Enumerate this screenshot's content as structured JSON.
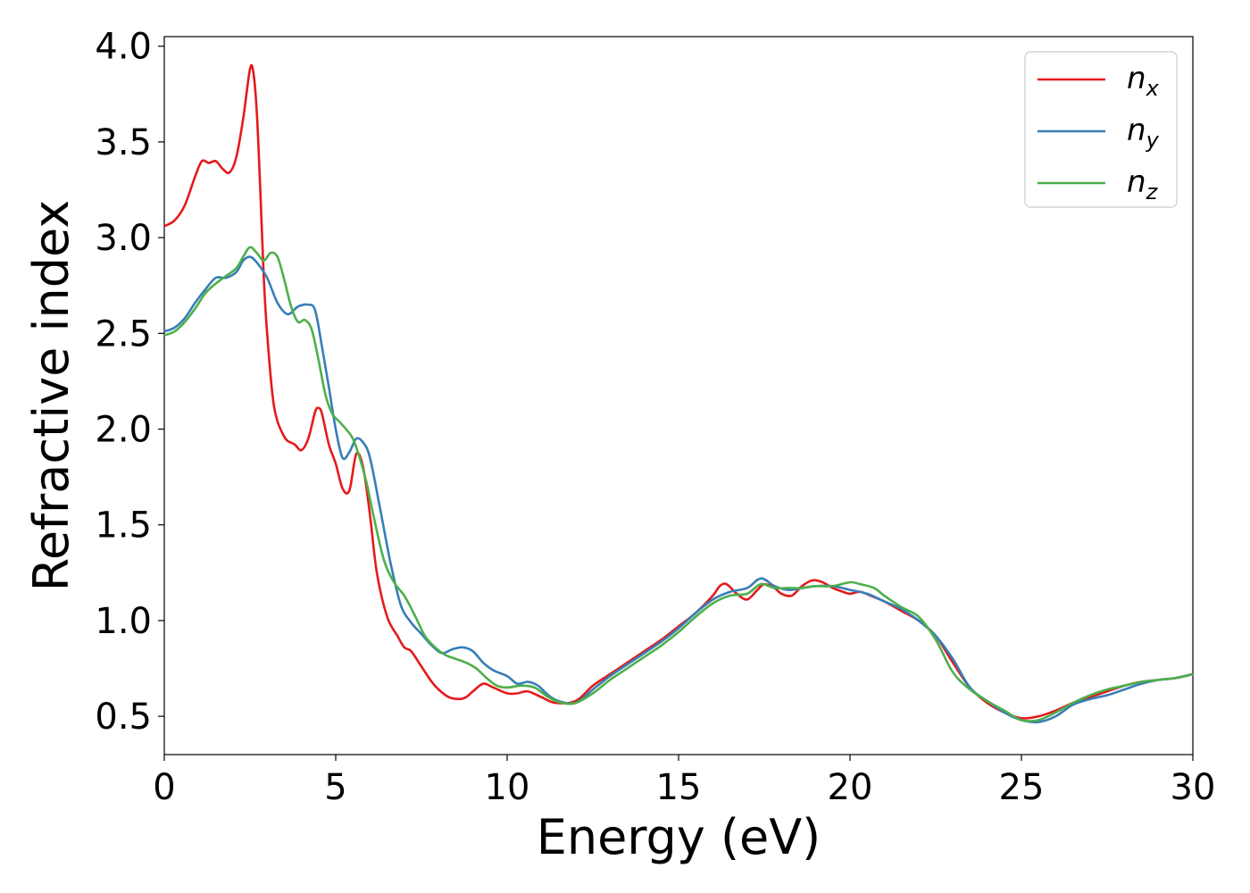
{
  "chart_data": {
    "type": "line",
    "xlabel": "Energy (eV)",
    "ylabel": "Refractive index",
    "xlim": [
      0,
      30
    ],
    "ylim": [
      0.3,
      4.05
    ],
    "x_ticks": [
      0,
      5,
      10,
      15,
      20,
      25,
      30
    ],
    "x_tick_labels": [
      "0",
      "5",
      "10",
      "15",
      "20",
      "25",
      "30"
    ],
    "y_ticks": [
      0.5,
      1.0,
      1.5,
      2.0,
      2.5,
      3.0,
      3.5,
      4.0
    ],
    "y_tick_labels": [
      "0.5",
      "1.0",
      "1.5",
      "2.0",
      "2.5",
      "3.0",
      "3.5",
      "4.0"
    ],
    "grid": false,
    "legend_position": "top-right",
    "series": [
      {
        "name": "n",
        "subscript": "x",
        "color": "#e41a1c",
        "x": [
          0,
          0.3,
          0.6,
          0.9,
          1.1,
          1.3,
          1.5,
          1.7,
          1.9,
          2.1,
          2.3,
          2.5,
          2.6,
          2.7,
          2.8,
          2.9,
          3.0,
          3.2,
          3.5,
          3.8,
          4.0,
          4.2,
          4.4,
          4.5,
          4.6,
          4.8,
          5.0,
          5.2,
          5.4,
          5.6,
          5.8,
          6.0,
          6.2,
          6.5,
          6.8,
          7.0,
          7.2,
          7.5,
          7.8,
          8.0,
          8.3,
          8.6,
          8.8,
          9.0,
          9.3,
          9.6,
          10.0,
          10.3,
          10.6,
          11.0,
          11.4,
          12.0,
          12.5,
          13.0,
          13.5,
          14.0,
          14.5,
          15.0,
          15.5,
          16.0,
          16.2,
          16.4,
          16.7,
          17.0,
          17.3,
          17.5,
          17.8,
          18.0,
          18.3,
          18.6,
          18.9,
          19.2,
          19.5,
          19.8,
          20.0,
          20.3,
          20.6,
          21.0,
          21.5,
          22.0,
          22.5,
          23.0,
          23.5,
          24.0,
          24.5,
          25.0,
          25.5,
          26.0,
          26.5,
          27.0,
          27.5,
          28.0,
          28.5,
          29.0,
          29.5,
          30.0
        ],
        "y": [
          3.06,
          3.09,
          3.17,
          3.32,
          3.4,
          3.39,
          3.4,
          3.36,
          3.34,
          3.42,
          3.62,
          3.88,
          3.86,
          3.65,
          3.25,
          2.8,
          2.5,
          2.12,
          1.96,
          1.92,
          1.89,
          1.95,
          2.09,
          2.11,
          2.08,
          1.92,
          1.82,
          1.69,
          1.68,
          1.87,
          1.8,
          1.55,
          1.25,
          1.02,
          0.92,
          0.86,
          0.84,
          0.76,
          0.68,
          0.64,
          0.6,
          0.59,
          0.6,
          0.63,
          0.67,
          0.65,
          0.62,
          0.62,
          0.63,
          0.6,
          0.57,
          0.58,
          0.66,
          0.72,
          0.78,
          0.84,
          0.9,
          0.97,
          1.04,
          1.13,
          1.18,
          1.19,
          1.14,
          1.11,
          1.16,
          1.19,
          1.17,
          1.14,
          1.13,
          1.18,
          1.21,
          1.2,
          1.17,
          1.15,
          1.14,
          1.15,
          1.13,
          1.1,
          1.05,
          1.0,
          0.92,
          0.78,
          0.65,
          0.57,
          0.52,
          0.49,
          0.5,
          0.53,
          0.57,
          0.6,
          0.63,
          0.66,
          0.68,
          0.69,
          0.7,
          0.72
        ]
      },
      {
        "name": "n",
        "subscript": "y",
        "color": "#377eb8",
        "x": [
          0,
          0.3,
          0.6,
          0.9,
          1.2,
          1.5,
          1.8,
          2.1,
          2.3,
          2.5,
          2.7,
          3.0,
          3.3,
          3.6,
          3.9,
          4.2,
          4.4,
          4.6,
          4.8,
          5.0,
          5.2,
          5.4,
          5.6,
          5.8,
          6.0,
          6.3,
          6.6,
          6.9,
          7.2,
          7.5,
          7.8,
          8.1,
          8.4,
          8.7,
          9.0,
          9.3,
          9.6,
          10.0,
          10.3,
          10.6,
          10.9,
          11.2,
          11.5,
          12.0,
          12.5,
          13.0,
          13.5,
          14.0,
          14.5,
          15.0,
          15.5,
          16.0,
          16.5,
          17.0,
          17.4,
          17.8,
          18.2,
          18.6,
          19.0,
          19.5,
          20.0,
          20.5,
          21.0,
          21.5,
          22.0,
          22.5,
          23.0,
          23.5,
          24.0,
          24.5,
          25.0,
          25.5,
          26.0,
          26.5,
          27.0,
          27.5,
          28.0,
          28.5,
          29.0,
          29.5,
          30.0
        ],
        "y": [
          2.51,
          2.53,
          2.58,
          2.66,
          2.73,
          2.79,
          2.79,
          2.82,
          2.88,
          2.9,
          2.87,
          2.79,
          2.66,
          2.6,
          2.64,
          2.65,
          2.62,
          2.43,
          2.22,
          2.0,
          1.85,
          1.88,
          1.95,
          1.93,
          1.85,
          1.58,
          1.3,
          1.08,
          0.99,
          0.93,
          0.87,
          0.83,
          0.85,
          0.86,
          0.84,
          0.78,
          0.74,
          0.71,
          0.67,
          0.68,
          0.66,
          0.61,
          0.58,
          0.57,
          0.64,
          0.71,
          0.77,
          0.83,
          0.89,
          0.96,
          1.04,
          1.11,
          1.15,
          1.17,
          1.22,
          1.18,
          1.16,
          1.17,
          1.18,
          1.18,
          1.16,
          1.14,
          1.1,
          1.06,
          1.0,
          0.92,
          0.8,
          0.65,
          0.58,
          0.52,
          0.48,
          0.47,
          0.5,
          0.56,
          0.59,
          0.61,
          0.64,
          0.67,
          0.69,
          0.7,
          0.72
        ]
      },
      {
        "name": "n",
        "subscript": "z",
        "color": "#4daf4a",
        "x": [
          0,
          0.3,
          0.6,
          0.9,
          1.2,
          1.5,
          1.8,
          2.1,
          2.3,
          2.5,
          2.7,
          2.9,
          3.1,
          3.3,
          3.5,
          3.7,
          3.9,
          4.1,
          4.3,
          4.5,
          4.7,
          4.9,
          5.1,
          5.3,
          5.5,
          5.7,
          5.9,
          6.1,
          6.4,
          6.7,
          7.0,
          7.3,
          7.6,
          7.9,
          8.2,
          8.5,
          8.8,
          9.1,
          9.4,
          9.7,
          10.0,
          10.4,
          10.8,
          11.2,
          11.6,
          12.0,
          12.5,
          13.0,
          13.5,
          14.0,
          14.5,
          15.0,
          15.5,
          16.0,
          16.5,
          17.0,
          17.4,
          17.8,
          18.2,
          18.6,
          19.0,
          19.5,
          20.0,
          20.3,
          20.7,
          21.0,
          21.5,
          22.0,
          22.5,
          23.0,
          23.5,
          24.0,
          24.5,
          25.0,
          25.5,
          26.0,
          26.5,
          27.0,
          27.5,
          28.0,
          28.5,
          29.0,
          29.5,
          30.0
        ],
        "y": [
          2.49,
          2.51,
          2.56,
          2.63,
          2.71,
          2.76,
          2.8,
          2.84,
          2.9,
          2.95,
          2.92,
          2.88,
          2.92,
          2.9,
          2.78,
          2.64,
          2.56,
          2.57,
          2.52,
          2.36,
          2.18,
          2.08,
          2.04,
          2.0,
          1.95,
          1.85,
          1.72,
          1.55,
          1.32,
          1.2,
          1.13,
          1.03,
          0.92,
          0.86,
          0.82,
          0.8,
          0.78,
          0.75,
          0.7,
          0.66,
          0.65,
          0.66,
          0.65,
          0.6,
          0.57,
          0.57,
          0.62,
          0.69,
          0.75,
          0.81,
          0.87,
          0.94,
          1.02,
          1.09,
          1.13,
          1.14,
          1.19,
          1.17,
          1.17,
          1.17,
          1.18,
          1.18,
          1.2,
          1.19,
          1.17,
          1.13,
          1.07,
          1.02,
          0.9,
          0.73,
          0.64,
          0.58,
          0.53,
          0.48,
          0.48,
          0.52,
          0.57,
          0.61,
          0.64,
          0.66,
          0.68,
          0.69,
          0.7,
          0.72
        ]
      }
    ]
  }
}
